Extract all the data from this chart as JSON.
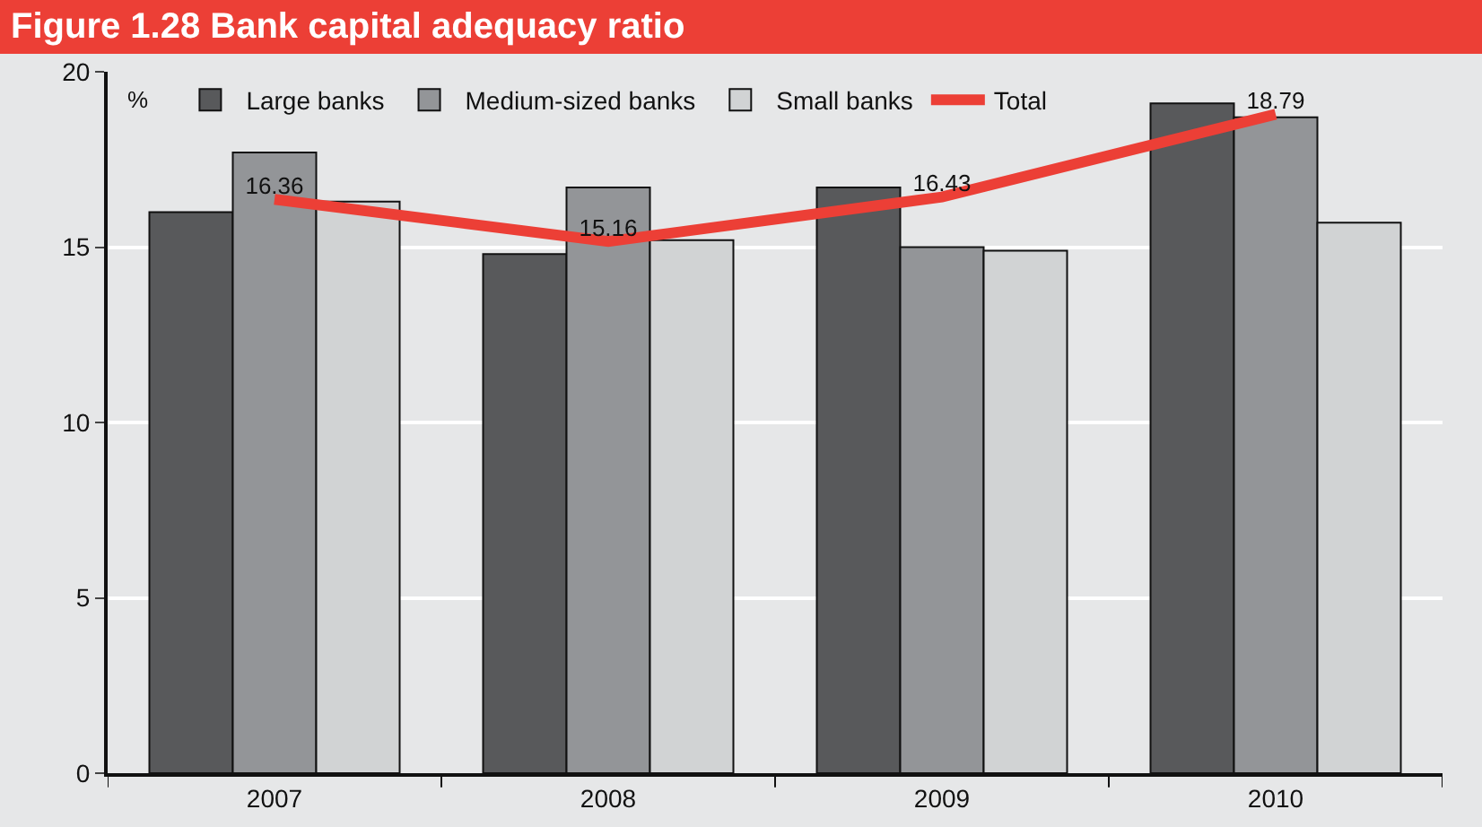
{
  "chart_data": {
    "type": "bar",
    "title": "Figure 1.28 Bank capital adequacy ratio",
    "ylabel": "%",
    "categories": [
      "2007",
      "2008",
      "2009",
      "2010"
    ],
    "series": [
      {
        "name": "Large banks",
        "color": "#58595b",
        "values": [
          16.0,
          14.8,
          16.7,
          19.1
        ]
      },
      {
        "name": "Medium-sized banks",
        "color": "#939598",
        "values": [
          17.7,
          16.7,
          15.0,
          18.7
        ]
      },
      {
        "name": "Small banks",
        "color": "#d1d3d4",
        "values": [
          16.3,
          15.2,
          14.9,
          15.7
        ]
      },
      {
        "name": "Total",
        "type": "line",
        "color": "#ec3f36",
        "values": [
          16.36,
          15.16,
          16.43,
          18.79
        ],
        "value_labels": [
          "16.36",
          "15.16",
          "16.43",
          "18.79"
        ]
      }
    ],
    "ylim": [
      0,
      20
    ],
    "yticks": [
      0,
      5,
      10,
      15,
      20
    ],
    "grid": "y",
    "legend": "top",
    "marker": "none",
    "line_style": "solid"
  }
}
